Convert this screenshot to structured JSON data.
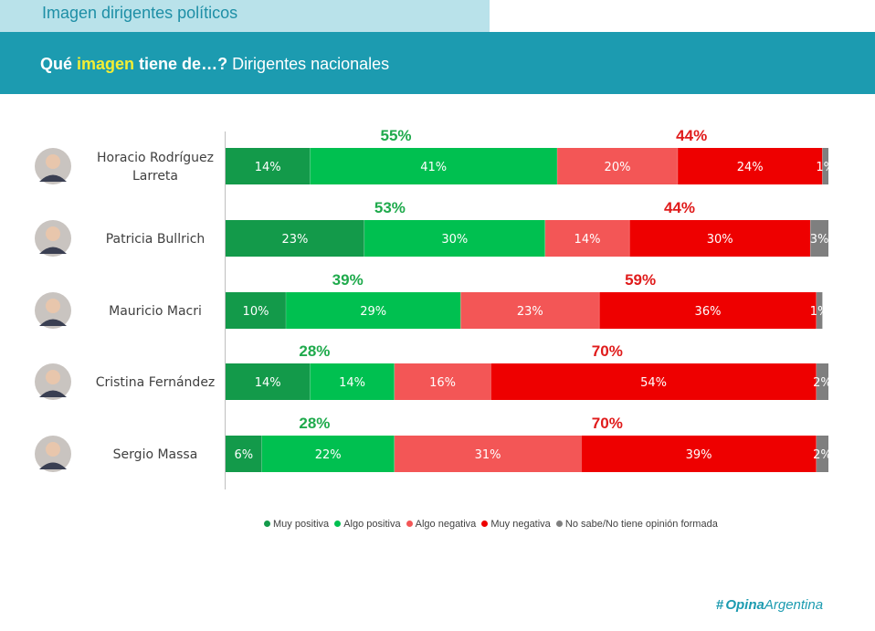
{
  "header": {
    "section_title": "Imagen dirigentes políticos",
    "q_prefix": "Qué ",
    "q_highlight": "imagen",
    "q_mid": " tiene de…?",
    "q_suffix": " Dirigentes nacionales"
  },
  "colors": {
    "muy_positiva": "#139a4a",
    "algo_positiva": "#00c050",
    "algo_negativa": "#f35656",
    "muy_negativa": "#ee0000",
    "ns_nc": "#7f7f7f",
    "total_positive": "#1faa4c",
    "total_negative": "#e01b1b",
    "accent": "#1c9bb0"
  },
  "chart_data": {
    "type": "bar",
    "orientation": "horizontal",
    "stacked": true,
    "title": "Qué imagen tiene de…? Dirigentes nacionales",
    "categories": [
      "Horacio Rodríguez Larreta",
      "Patricia Bullrich",
      "Mauricio Macri",
      "Cristina Fernández",
      "Sergio Massa"
    ],
    "series": [
      {
        "name": "Muy positiva",
        "values": [
          14,
          23,
          10,
          14,
          6
        ]
      },
      {
        "name": "Algo positiva",
        "values": [
          41,
          30,
          29,
          14,
          22
        ]
      },
      {
        "name": "Algo negativa",
        "values": [
          20,
          14,
          23,
          16,
          31
        ]
      },
      {
        "name": "Muy negativa",
        "values": [
          24,
          30,
          36,
          54,
          39
        ]
      },
      {
        "name": "No sabe/No tiene opinión formada",
        "values": [
          1,
          3,
          1,
          2,
          2
        ]
      }
    ],
    "value_labels": [
      [
        "14%",
        "41%",
        "20%",
        "24%",
        "1%"
      ],
      [
        "23%",
        "30%",
        "14%",
        "30%",
        "3%"
      ],
      [
        "10%",
        "29%",
        "23%",
        "36%",
        "1%"
      ],
      [
        "14%",
        "14%",
        "16%",
        "54%",
        "2%"
      ],
      [
        "6%",
        "22%",
        "31%",
        "39%",
        "2%"
      ]
    ],
    "totals_positive": [
      "55%",
      "53%",
      "39%",
      "28%",
      "28%"
    ],
    "totals_negative": [
      "44%",
      "44%",
      "59%",
      "70%",
      "70%"
    ],
    "xlim": [
      0,
      100
    ],
    "legend_position": "bottom"
  },
  "people": [
    {
      "label_lines": [
        "Horacio Rodríguez",
        "Larreta"
      ]
    },
    {
      "label_lines": [
        "Patricia Bullrich"
      ]
    },
    {
      "label_lines": [
        "Mauricio Macri"
      ]
    },
    {
      "label_lines": [
        "Cristina Fernández"
      ]
    },
    {
      "label_lines": [
        "Sergio Massa"
      ]
    }
  ],
  "legend": {
    "items": [
      "Muy positiva",
      "Algo positiva",
      "Algo negativa",
      "Muy negativa",
      "No sabe/No tiene opinión formada"
    ]
  },
  "footer": {
    "logo_hash": "#",
    "logo_main": "Opina",
    "logo_second": "Argentina"
  }
}
